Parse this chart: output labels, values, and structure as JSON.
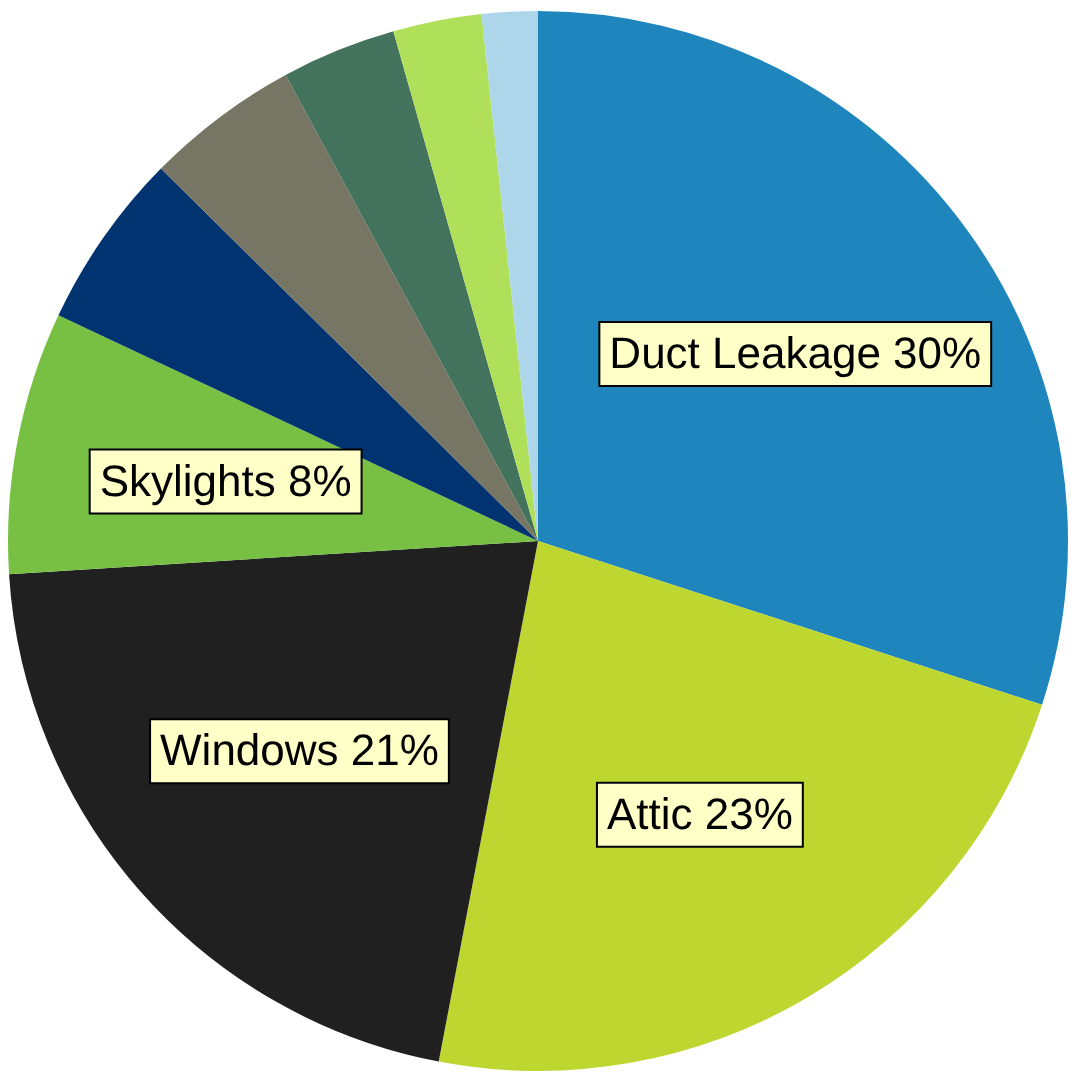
{
  "chart_data": {
    "type": "pie",
    "categories": [
      "Duct Leakage",
      "Attic",
      "Windows",
      "Skylights",
      null,
      null,
      null,
      null,
      null
    ],
    "values": [
      30,
      23,
      21,
      8,
      5.4,
      4.7,
      3.5,
      2.7,
      1.7
    ],
    "value_labels": [
      "30%",
      "23%",
      "21%",
      "8%",
      null,
      null,
      null,
      null,
      null
    ],
    "colors": [
      "#1f86bd",
      "#bdd630",
      "#202020",
      "#78c043",
      "#003370",
      "#777563",
      "#43735c",
      "#b0df5a",
      "#aed6ea"
    ],
    "legend": false
  }
}
